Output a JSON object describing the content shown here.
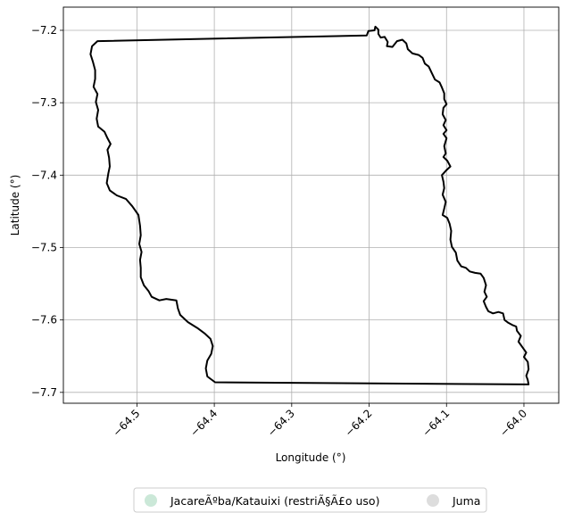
{
  "chart_data": {
    "type": "map",
    "xlabel": "Longitude (°)",
    "ylabel": "Latitude (°)",
    "xlim": [
      -64.595,
      -63.955
    ],
    "ylim": [
      -7.715,
      -7.168
    ],
    "x_ticks": [
      -64.5,
      -64.4,
      -64.3,
      -64.2,
      -64.1,
      -64.0
    ],
    "x_tick_labels": [
      "−64.5",
      "−64.4",
      "−64.3",
      "−64.2",
      "−64.1",
      "−64.0"
    ],
    "y_ticks": [
      -7.2,
      -7.3,
      -7.4,
      -7.5,
      -7.6,
      -7.7
    ],
    "y_tick_labels": [
      "−7.2",
      "−7.3",
      "−7.4",
      "−7.5",
      "−7.6",
      "−7.7"
    ],
    "grid": true,
    "legend_position": "bottom-center",
    "colors": {
      "outline": "#000000",
      "grid": "#b0b0b0",
      "frame": "#000000",
      "legend_border": "#cccccc"
    },
    "legend": [
      {
        "label": "JacareÃºba/Katauixi (restriÃ§Ã£o uso)",
        "color": "#cbe8d8"
      },
      {
        "label": "Juma",
        "color": "#dddddd"
      }
    ],
    "boundary": [
      [
        -64.551,
        -7.215
      ],
      [
        -64.203,
        -7.207
      ],
      [
        -64.201,
        -7.201
      ],
      [
        -64.193,
        -7.2
      ],
      [
        -64.192,
        -7.195
      ],
      [
        -64.188,
        -7.199
      ],
      [
        -64.188,
        -7.205
      ],
      [
        -64.185,
        -7.21
      ],
      [
        -64.18,
        -7.209
      ],
      [
        -64.176,
        -7.216
      ],
      [
        -64.177,
        -7.222
      ],
      [
        -64.17,
        -7.223
      ],
      [
        -64.164,
        -7.215
      ],
      [
        -64.157,
        -7.213
      ],
      [
        -64.152,
        -7.218
      ],
      [
        -64.15,
        -7.226
      ],
      [
        -64.144,
        -7.232
      ],
      [
        -64.136,
        -7.234
      ],
      [
        -64.131,
        -7.238
      ],
      [
        -64.128,
        -7.246
      ],
      [
        -64.123,
        -7.25
      ],
      [
        -64.119,
        -7.259
      ],
      [
        -64.115,
        -7.268
      ],
      [
        -64.109,
        -7.272
      ],
      [
        -64.106,
        -7.279
      ],
      [
        -64.103,
        -7.287
      ],
      [
        -64.103,
        -7.295
      ],
      [
        -64.1,
        -7.302
      ],
      [
        -64.104,
        -7.307
      ],
      [
        -64.105,
        -7.316
      ],
      [
        -64.101,
        -7.324
      ],
      [
        -64.104,
        -7.331
      ],
      [
        -64.1,
        -7.338
      ],
      [
        -64.104,
        -7.343
      ],
      [
        -64.1,
        -7.349
      ],
      [
        -64.103,
        -7.36
      ],
      [
        -64.101,
        -7.37
      ],
      [
        -64.104,
        -7.375
      ],
      [
        -64.099,
        -7.38
      ],
      [
        -64.095,
        -7.388
      ],
      [
        -64.1,
        -7.393
      ],
      [
        -64.106,
        -7.4
      ],
      [
        -64.104,
        -7.409
      ],
      [
        -64.103,
        -7.418
      ],
      [
        -64.105,
        -7.427
      ],
      [
        -64.101,
        -7.437
      ],
      [
        -64.103,
        -7.446
      ],
      [
        -64.105,
        -7.455
      ],
      [
        -64.099,
        -7.459
      ],
      [
        -64.096,
        -7.467
      ],
      [
        -64.094,
        -7.477
      ],
      [
        -64.095,
        -7.489
      ],
      [
        -64.093,
        -7.499
      ],
      [
        -64.088,
        -7.507
      ],
      [
        -64.086,
        -7.518
      ],
      [
        -64.081,
        -7.526
      ],
      [
        -64.075,
        -7.528
      ],
      [
        -64.07,
        -7.533
      ],
      [
        -64.063,
        -7.535
      ],
      [
        -64.056,
        -7.536
      ],
      [
        -64.052,
        -7.542
      ],
      [
        -64.049,
        -7.552
      ],
      [
        -64.051,
        -7.561
      ],
      [
        -64.048,
        -7.568
      ],
      [
        -64.052,
        -7.574
      ],
      [
        -64.049,
        -7.582
      ],
      [
        -64.046,
        -7.588
      ],
      [
        -64.04,
        -7.591
      ],
      [
        -64.033,
        -7.589
      ],
      [
        -64.027,
        -7.591
      ],
      [
        -64.025,
        -7.6
      ],
      [
        -64.02,
        -7.604
      ],
      [
        -64.015,
        -7.607
      ],
      [
        -64.01,
        -7.609
      ],
      [
        -64.009,
        -7.615
      ],
      [
        -64.004,
        -7.622
      ],
      [
        -64.007,
        -7.63
      ],
      [
        -64.001,
        -7.639
      ],
      [
        -63.997,
        -7.645
      ],
      [
        -64.0,
        -7.651
      ],
      [
        -63.995,
        -7.658
      ],
      [
        -63.994,
        -7.668
      ],
      [
        -63.997,
        -7.677
      ],
      [
        -63.995,
        -7.683
      ],
      [
        -63.994,
        -7.689
      ],
      [
        -64.399,
        -7.686
      ],
      [
        -64.409,
        -7.678
      ],
      [
        -64.411,
        -7.667
      ],
      [
        -64.409,
        -7.656
      ],
      [
        -64.404,
        -7.647
      ],
      [
        -64.402,
        -7.636
      ],
      [
        -64.405,
        -7.626
      ],
      [
        -64.412,
        -7.619
      ],
      [
        -64.422,
        -7.611
      ],
      [
        -64.434,
        -7.603
      ],
      [
        -64.444,
        -7.593
      ],
      [
        -64.447,
        -7.584
      ],
      [
        -64.449,
        -7.573
      ],
      [
        -64.462,
        -7.571
      ],
      [
        -64.471,
        -7.573
      ],
      [
        -64.481,
        -7.568
      ],
      [
        -64.485,
        -7.56
      ],
      [
        -64.491,
        -7.552
      ],
      [
        -64.495,
        -7.541
      ],
      [
        -64.495,
        -7.528
      ],
      [
        -64.496,
        -7.517
      ],
      [
        -64.494,
        -7.506
      ],
      [
        -64.497,
        -7.495
      ],
      [
        -64.495,
        -7.483
      ],
      [
        -64.496,
        -7.47
      ],
      [
        -64.498,
        -7.455
      ],
      [
        -64.506,
        -7.443
      ],
      [
        -64.514,
        -7.433
      ],
      [
        -64.526,
        -7.428
      ],
      [
        -64.535,
        -7.421
      ],
      [
        -64.539,
        -7.411
      ],
      [
        -64.537,
        -7.398
      ],
      [
        -64.535,
        -7.388
      ],
      [
        -64.536,
        -7.376
      ],
      [
        -64.538,
        -7.365
      ],
      [
        -64.534,
        -7.357
      ],
      [
        -64.538,
        -7.349
      ],
      [
        -64.542,
        -7.34
      ],
      [
        -64.55,
        -7.333
      ],
      [
        -64.552,
        -7.322
      ],
      [
        -64.55,
        -7.31
      ],
      [
        -64.553,
        -7.299
      ],
      [
        -64.551,
        -7.288
      ],
      [
        -64.556,
        -7.278
      ],
      [
        -64.554,
        -7.267
      ],
      [
        -64.554,
        -7.255
      ],
      [
        -64.557,
        -7.243
      ],
      [
        -64.56,
        -7.233
      ],
      [
        -64.558,
        -7.222
      ],
      [
        -64.551,
        -7.215
      ]
    ]
  }
}
